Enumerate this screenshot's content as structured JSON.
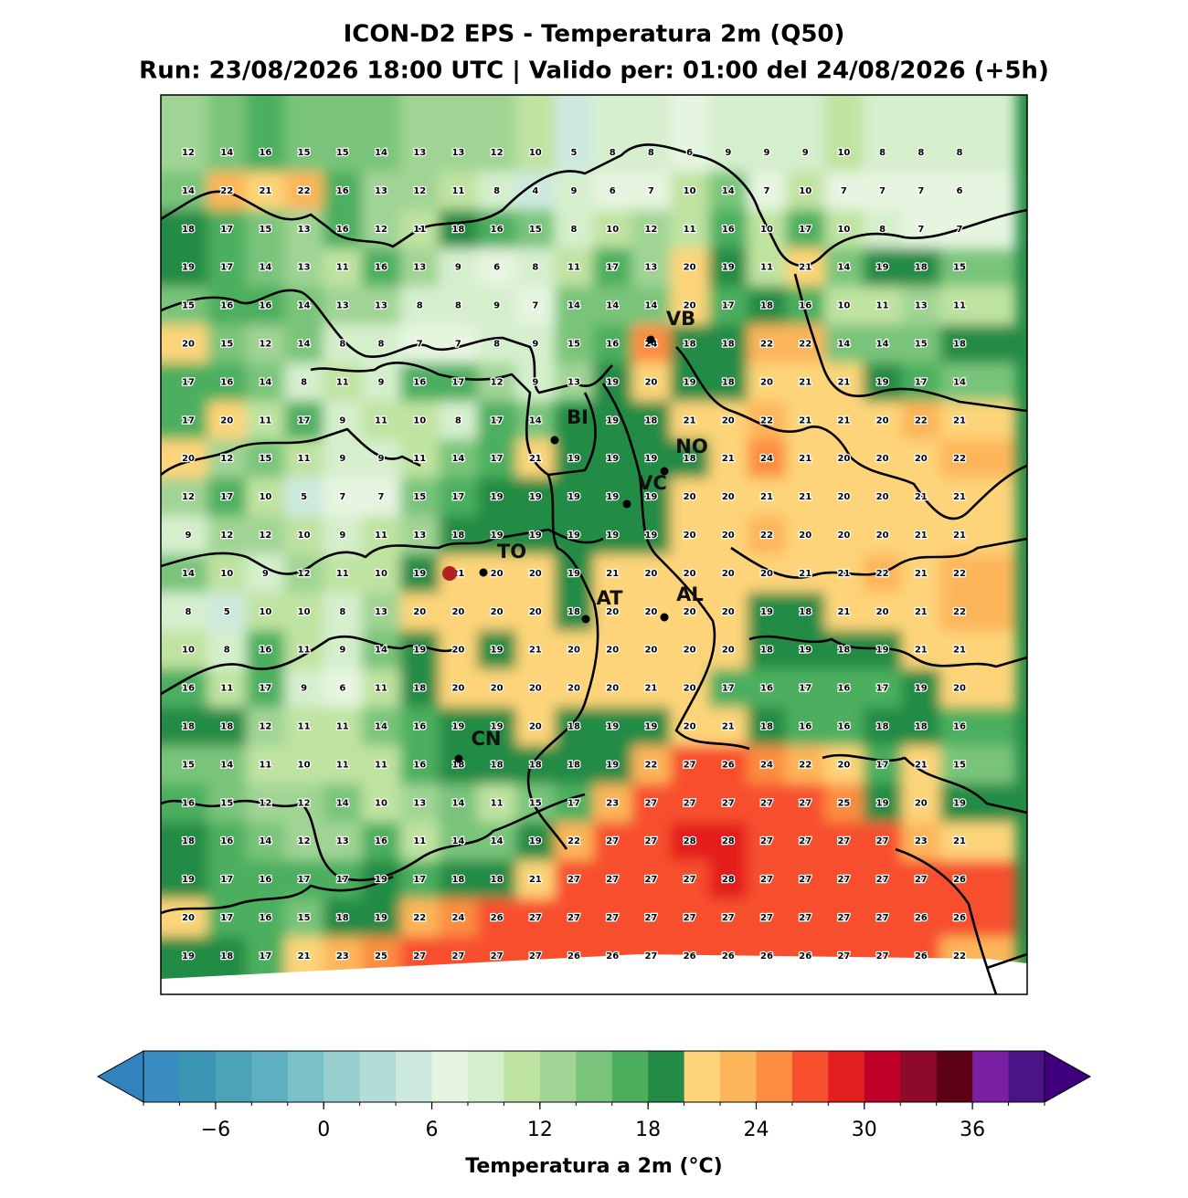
{
  "title": "ICON-D2 EPS - Temperatura 2m (Q50)",
  "subtitle": "Run: 23/08/2026 18:00 UTC | Valido per: 01:00 del 24/08/2026 (+5h)",
  "grid": [
    [
      12,
      14,
      16,
      15,
      15,
      14,
      13,
      13,
      12,
      10,
      5,
      8,
      8,
      6,
      9,
      9,
      9,
      10,
      8,
      8,
      8
    ],
    [
      14,
      22,
      21,
      22,
      16,
      13,
      12,
      11,
      8,
      4,
      9,
      6,
      7,
      10,
      14,
      7,
      10,
      7,
      7,
      7,
      6
    ],
    [
      18,
      17,
      15,
      13,
      16,
      12,
      11,
      18,
      16,
      15,
      8,
      10,
      12,
      11,
      16,
      10,
      17,
      10,
      8,
      7,
      7
    ],
    [
      19,
      17,
      14,
      13,
      11,
      16,
      13,
      9,
      6,
      8,
      11,
      17,
      13,
      20,
      19,
      11,
      21,
      14,
      19,
      18,
      15
    ],
    [
      15,
      16,
      16,
      14,
      13,
      13,
      8,
      8,
      9,
      7,
      14,
      14,
      14,
      20,
      17,
      18,
      16,
      10,
      11,
      13,
      11
    ],
    [
      20,
      15,
      12,
      14,
      8,
      8,
      7,
      7,
      8,
      9,
      15,
      16,
      24,
      18,
      18,
      22,
      22,
      14,
      14,
      15,
      18
    ],
    [
      17,
      16,
      14,
      8,
      11,
      9,
      16,
      17,
      12,
      9,
      13,
      19,
      20,
      19,
      18,
      20,
      21,
      21,
      19,
      17,
      14
    ],
    [
      17,
      20,
      11,
      17,
      9,
      11,
      10,
      8,
      17,
      14,
      null,
      19,
      18,
      21,
      20,
      22,
      21,
      21,
      20,
      22,
      21
    ],
    [
      20,
      12,
      15,
      11,
      9,
      9,
      11,
      14,
      17,
      21,
      19,
      19,
      19,
      18,
      21,
      24,
      21,
      20,
      20,
      20,
      22
    ],
    [
      12,
      17,
      10,
      5,
      7,
      7,
      15,
      17,
      19,
      19,
      19,
      19,
      19,
      20,
      20,
      21,
      21,
      20,
      20,
      21,
      21
    ],
    [
      9,
      12,
      12,
      10,
      9,
      11,
      13,
      18,
      19,
      19,
      19,
      19,
      19,
      20,
      20,
      22,
      20,
      20,
      20,
      21,
      21
    ],
    [
      14,
      10,
      9,
      12,
      11,
      10,
      19,
      21,
      20,
      20,
      19,
      21,
      20,
      20,
      20,
      20,
      21,
      21,
      22,
      21,
      22
    ],
    [
      8,
      5,
      10,
      10,
      8,
      13,
      20,
      20,
      20,
      20,
      18,
      20,
      20,
      20,
      20,
      19,
      18,
      21,
      20,
      21,
      22
    ],
    [
      10,
      8,
      16,
      11,
      9,
      14,
      19,
      20,
      19,
      21,
      20,
      20,
      20,
      20,
      20,
      18,
      19,
      18,
      19,
      21,
      21
    ],
    [
      16,
      11,
      17,
      9,
      6,
      11,
      18,
      20,
      20,
      20,
      20,
      20,
      21,
      20,
      17,
      16,
      17,
      16,
      17,
      19,
      20
    ],
    [
      18,
      18,
      12,
      11,
      11,
      14,
      16,
      19,
      19,
      20,
      18,
      19,
      19,
      20,
      21,
      18,
      16,
      16,
      18,
      18,
      16
    ],
    [
      15,
      14,
      11,
      10,
      11,
      11,
      16,
      18,
      18,
      18,
      18,
      19,
      22,
      27,
      26,
      24,
      22,
      20,
      17,
      21,
      15
    ],
    [
      16,
      15,
      12,
      12,
      14,
      10,
      13,
      14,
      11,
      15,
      17,
      23,
      27,
      27,
      27,
      27,
      27,
      25,
      19,
      20,
      19
    ],
    [
      18,
      16,
      14,
      12,
      13,
      16,
      11,
      14,
      14,
      19,
      22,
      27,
      27,
      28,
      28,
      27,
      27,
      27,
      27,
      23,
      21
    ],
    [
      19,
      17,
      16,
      17,
      17,
      19,
      17,
      18,
      18,
      21,
      27,
      27,
      27,
      27,
      28,
      27,
      27,
      27,
      27,
      27,
      26
    ],
    [
      20,
      17,
      16,
      15,
      18,
      19,
      22,
      24,
      26,
      27,
      27,
      27,
      27,
      27,
      27,
      27,
      27,
      27,
      27,
      26,
      26
    ],
    [
      19,
      18,
      17,
      21,
      23,
      25,
      27,
      27,
      27,
      27,
      26,
      26,
      27,
      26,
      26,
      26,
      26,
      27,
      27,
      26,
      22
    ]
  ],
  "cities": [
    "VB",
    "BI",
    "NO",
    "VC",
    "TO",
    "AT",
    "AL",
    "CN"
  ],
  "colorbar": {
    "label": "Temperatura a 2m (°C)",
    "levels": [
      -10,
      -8,
      -6,
      -4,
      -2,
      0,
      2,
      4,
      6,
      8,
      10,
      12,
      14,
      16,
      18,
      20,
      22,
      24,
      26,
      28,
      30,
      32,
      34,
      36,
      38,
      40
    ],
    "colors": [
      "#3b8cc0",
      "#3a96b4",
      "#4aa3b9",
      "#5eb0c0",
      "#7ac0c8",
      "#97cfd0",
      "#b2dcd6",
      "#cde9df",
      "#e6f5e0",
      "#d5efcd",
      "#bfe3a0",
      "#a0d494",
      "#79c47a",
      "#4caf5e",
      "#238b45",
      "#fdd479",
      "#fdb55a",
      "#fc8d40",
      "#f74f2e",
      "#e31e1e",
      "#bf0028",
      "#8e0a2a",
      "#5c0018",
      "#7b1fa2",
      "#4a1486"
    ],
    "under": "#3182bd",
    "over": "#3f007d",
    "ticks": [
      {
        "value": -6,
        "label": "−6"
      },
      0,
      6,
      12,
      18,
      24,
      30,
      36
    ]
  }
}
